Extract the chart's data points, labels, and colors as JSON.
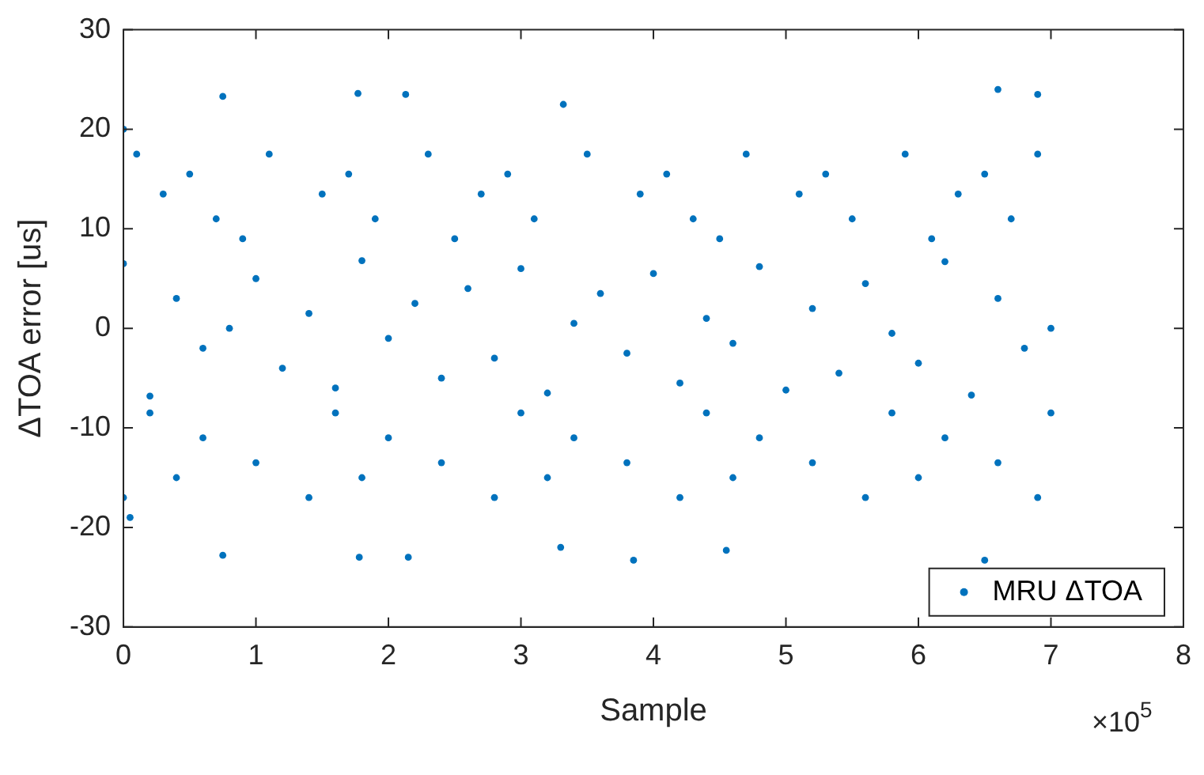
{
  "chart_data": {
    "type": "scatter",
    "xlabel": "Sample",
    "ylabel": "ΔTOA error [us]",
    "xlim": [
      0,
      8
    ],
    "xticks": [
      0,
      1,
      2,
      3,
      4,
      5,
      6,
      7,
      8
    ],
    "ylim": [
      -30,
      30
    ],
    "yticks": [
      -30,
      -20,
      -10,
      0,
      10,
      20,
      30
    ],
    "grid": false,
    "legend": "bottom right",
    "marker": "circle",
    "annotations": [
      "×10$^{5}$"
    ],
    "series": [
      {
        "name": "MRU ΔTOA",
        "color": "#0072bd",
        "x": [
          0,
          0.2,
          0.4,
          0.6,
          0.8,
          1,
          1.2,
          1.4,
          1.6,
          1.8,
          2,
          2.2,
          2.4,
          2.6,
          2.8,
          3,
          3.2,
          3.4,
          3.6,
          3.8,
          4,
          4.2,
          4.4,
          4.6,
          4.8,
          5,
          5.2,
          5.4,
          5.6,
          5.8,
          6,
          6.2,
          6.4,
          6.6,
          6.8,
          7,
          0.1,
          1.1,
          2.3,
          3.5,
          4.7,
          5.9,
          6.9,
          0.5,
          1.7,
          2.9,
          4.1,
          5.3,
          6.5,
          0.3,
          1.5,
          2.7,
          3.9,
          5.1,
          6.3,
          0.7,
          1.9,
          3.1,
          4.3,
          5.5,
          6.7,
          0.9,
          2.5,
          4.5,
          6.1,
          0.2,
          1.6,
          3,
          4.4,
          5.8,
          7,
          0.6,
          2,
          3.4,
          4.8,
          6.2,
          1,
          2.4,
          3.8,
          5.2,
          6.6,
          0.4,
          1.8,
          3.2,
          4.6,
          6,
          0,
          1.4,
          2.8,
          4.2,
          5.6,
          6.9,
          0.05,
          0,
          0.75,
          1.77,
          2.13,
          6.6,
          6.9,
          3.32,
          0.75,
          1.78,
          2.15,
          3.85,
          6.5,
          3.3,
          4.55
        ],
        "values": [
          6.5,
          -6.8,
          3,
          -2,
          0,
          5,
          -4,
          1.5,
          -6,
          6.8,
          -1,
          2.5,
          -5,
          4,
          -3,
          6,
          -6.5,
          0.5,
          3.5,
          -2.5,
          5.5,
          -5.5,
          1,
          -1.5,
          6.2,
          -6.2,
          2,
          -4.5,
          4.5,
          -0.5,
          -3.5,
          6.7,
          -6.7,
          3,
          -2,
          0,
          17.5,
          17.5,
          17.5,
          17.5,
          17.5,
          17.5,
          17.5,
          15.5,
          15.5,
          15.5,
          15.5,
          15.5,
          15.5,
          13.5,
          13.5,
          13.5,
          13.5,
          13.5,
          13.5,
          11,
          11,
          11,
          11,
          11,
          11,
          9,
          9,
          9,
          9,
          -8.5,
          -8.5,
          -8.5,
          -8.5,
          -8.5,
          -8.5,
          -11,
          -11,
          -11,
          -11,
          -11,
          -13.5,
          -13.5,
          -13.5,
          -13.5,
          -13.5,
          -15,
          -15,
          -15,
          -15,
          -15,
          -17,
          -17,
          -17,
          -17,
          -17,
          -17,
          -19,
          20,
          23.3,
          23.6,
          23.5,
          24,
          23.5,
          22.5,
          -22.8,
          -23,
          -23,
          -23.3,
          -23.3,
          -22,
          -22.3
        ]
      }
    ]
  }
}
